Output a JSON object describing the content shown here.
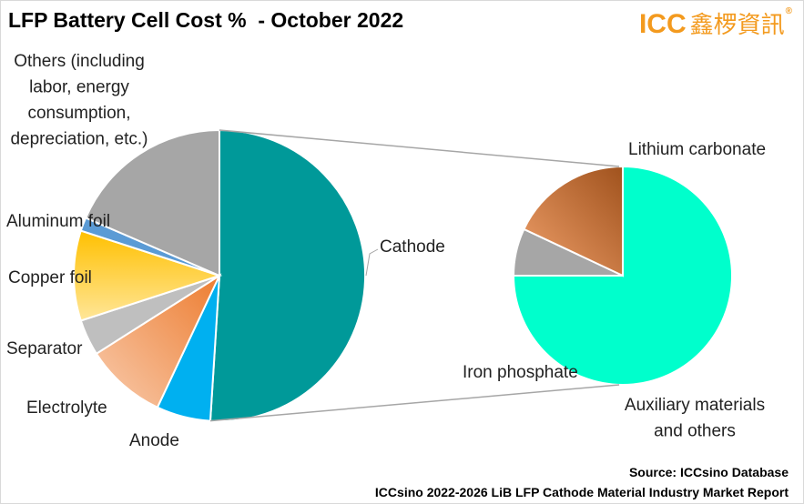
{
  "title": "LFP Battery Cell Cost %  - October 2022",
  "logo": {
    "brand": "ICC",
    "cjk": "鑫椤資訊",
    "reg": "®"
  },
  "source": {
    "line1": "Source: ICCsino Database",
    "line2": "ICCsino 2022-2026 LiB LFP Cathode Material Industry Market Report"
  },
  "colors": {
    "cathode": "#009999",
    "anode": "#00b0f0",
    "electrolyte": "#f4a77a",
    "separator": "#bfbfbf",
    "copper_foil": "#ffc000",
    "aluminum_foil": "#5b9bd5",
    "others": "#a6a6a6",
    "lithium_carbonate": "#00ffcc",
    "iron_phosphate": "#e07b39",
    "auxiliary": "#a6a6a6",
    "connector": "#a6a6a6"
  },
  "chart_data": [
    {
      "type": "pie",
      "title": "LFP Battery Cell Cost %  - October 2022",
      "slices": [
        {
          "key": "cathode",
          "label": "Cathode",
          "value": 51
        },
        {
          "key": "anode",
          "label": "Anode",
          "value": 6
        },
        {
          "key": "electrolyte",
          "label": "Electrolyte",
          "value": 9
        },
        {
          "key": "separator",
          "label": "Separator",
          "value": 4
        },
        {
          "key": "copper_foil",
          "label": "Copper foil",
          "value": 10
        },
        {
          "key": "aluminum_foil",
          "label": "Aluminum foil",
          "value": 1.5
        },
        {
          "key": "others",
          "label": "Others (including labor, energy consumption, depreciation, etc.)",
          "value": 18.5
        }
      ]
    },
    {
      "type": "pie",
      "title": "",
      "breakdown_of": "Cathode",
      "slices": [
        {
          "key": "lithium_carbonate",
          "label": "Lithium carbonate",
          "value": 75
        },
        {
          "key": "auxiliary",
          "label": "Auxiliary materials and others",
          "value": 7
        },
        {
          "key": "iron_phosphate",
          "label": "Iron phosphate",
          "value": 18
        }
      ]
    }
  ]
}
